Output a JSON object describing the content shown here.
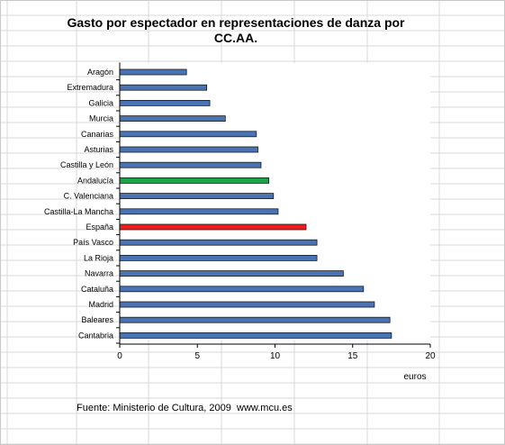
{
  "chart_data": {
    "type": "bar",
    "orientation": "horizontal",
    "title_lines": [
      "Gasto por espectador en representaciones de danza por",
      "CC.AA."
    ],
    "categories": [
      "Aragón",
      "Extremadura",
      "Galicia",
      "Murcia",
      "Canarias",
      "Asturias",
      "Castilla y León",
      "Andalucía",
      "C. Valenciana",
      "Castilla-La Mancha",
      "España",
      "País Vasco",
      "La Rioja",
      "Navarra",
      "Cataluña",
      "Madrid",
      "Baleares",
      "Cantabria"
    ],
    "values": [
      4.3,
      5.6,
      5.8,
      6.8,
      8.8,
      8.9,
      9.1,
      9.6,
      9.9,
      10.2,
      12.0,
      12.7,
      12.7,
      14.4,
      15.7,
      16.4,
      17.4,
      17.5
    ],
    "xlabel": "euros",
    "xlim": [
      0,
      20
    ],
    "xticks": [
      0,
      5,
      10,
      15,
      20
    ],
    "colors": {
      "default": "#4a73b3",
      "highlights": {
        "Andalucía": "#1fa34a",
        "España": "#ee1c1c"
      }
    },
    "grid": false
  },
  "source": {
    "text": "Fuente: Ministerio de Cultura, 2009",
    "url": "www.mcu.es"
  }
}
